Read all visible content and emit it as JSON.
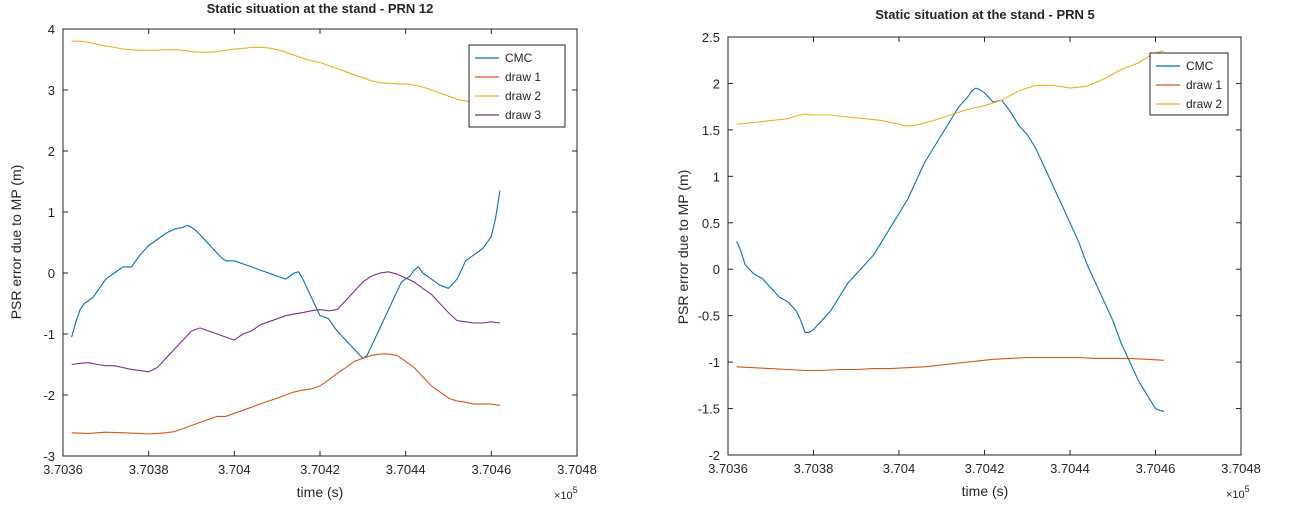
{
  "chart_data": [
    {
      "type": "line",
      "title": "Static situation at the stand - PRN 12",
      "xlabel": "time (s)",
      "ylabel": "PSR error due to MP (m)",
      "x_multiplier": "×10",
      "x_multiplier_exp": "5",
      "xlim": [
        3.7036,
        3.7048
      ],
      "ylim": [
        -3,
        4
      ],
      "xticks": [
        "3.7036",
        "3.7038",
        "3.704",
        "3.7042",
        "3.7044",
        "3.7046",
        "3.7048"
      ],
      "yticks": [
        "-3",
        "-2",
        "-1",
        "0",
        "1",
        "2",
        "3",
        "4"
      ],
      "legend_position": "top-right",
      "grid": false,
      "series": [
        {
          "name": "CMC",
          "color": "#0072BD",
          "x": [
            3.70362,
            3.70363,
            3.70364,
            3.70365,
            3.70366,
            3.70367,
            3.70368,
            3.7037,
            3.70372,
            3.70374,
            3.70376,
            3.70378,
            3.7038,
            3.70382,
            3.70384,
            3.70386,
            3.70388,
            3.70389,
            3.7039,
            3.70391,
            3.70393,
            3.70395,
            3.70397,
            3.70398,
            3.704,
            3.70402,
            3.70404,
            3.70406,
            3.70408,
            3.7041,
            3.70412,
            3.70414,
            3.70415,
            3.70416,
            3.70418,
            3.70419,
            3.7042,
            3.70421,
            3.70422,
            3.70423,
            3.70424,
            3.70426,
            3.70428,
            3.7043,
            3.70431,
            3.70432,
            3.70434,
            3.70436,
            3.70438,
            3.70439,
            3.7044,
            3.70441,
            3.70442,
            3.70443,
            3.70444,
            3.70446,
            3.70448,
            3.7045,
            3.70452,
            3.70453,
            3.70454,
            3.70456,
            3.70458,
            3.7046,
            3.70461,
            3.70462
          ],
          "y": [
            -1.05,
            -0.8,
            -0.6,
            -0.5,
            -0.45,
            -0.4,
            -0.3,
            -0.1,
            0.0,
            0.1,
            0.1,
            0.3,
            0.45,
            0.55,
            0.65,
            0.72,
            0.75,
            0.78,
            0.75,
            0.7,
            0.55,
            0.4,
            0.25,
            0.2,
            0.2,
            0.15,
            0.1,
            0.05,
            0.0,
            -0.05,
            -0.1,
            0.0,
            0.02,
            -0.1,
            -0.4,
            -0.55,
            -0.7,
            -0.72,
            -0.75,
            -0.85,
            -0.95,
            -1.1,
            -1.25,
            -1.4,
            -1.35,
            -1.2,
            -0.9,
            -0.6,
            -0.3,
            -0.15,
            -0.1,
            -0.05,
            0.05,
            0.1,
            0.0,
            -0.1,
            -0.2,
            -0.25,
            -0.1,
            0.05,
            0.2,
            0.3,
            0.4,
            0.6,
            0.9,
            1.35
          ]
        },
        {
          "name": "draw 1",
          "color": "#D95319",
          "x": [
            3.70362,
            3.70366,
            3.7037,
            3.70374,
            3.70378,
            3.7038,
            3.70382,
            3.70384,
            3.70386,
            3.70388,
            3.7039,
            3.70392,
            3.70394,
            3.70396,
            3.70398,
            3.704,
            3.70402,
            3.70404,
            3.70406,
            3.70408,
            3.7041,
            3.70412,
            3.70414,
            3.70416,
            3.70418,
            3.7042,
            3.70422,
            3.70424,
            3.70426,
            3.70428,
            3.7043,
            3.70432,
            3.70434,
            3.70436,
            3.70438,
            3.7044,
            3.70442,
            3.70444,
            3.70446,
            3.70448,
            3.7045,
            3.70452,
            3.70454,
            3.70456,
            3.70458,
            3.7046,
            3.70462
          ],
          "y": [
            -2.62,
            -2.63,
            -2.61,
            -2.62,
            -2.63,
            -2.64,
            -2.63,
            -2.62,
            -2.6,
            -2.55,
            -2.5,
            -2.45,
            -2.4,
            -2.35,
            -2.35,
            -2.3,
            -2.25,
            -2.2,
            -2.15,
            -2.1,
            -2.05,
            -2.0,
            -1.95,
            -1.92,
            -1.9,
            -1.85,
            -1.75,
            -1.65,
            -1.55,
            -1.45,
            -1.4,
            -1.35,
            -1.33,
            -1.33,
            -1.35,
            -1.45,
            -1.55,
            -1.7,
            -1.85,
            -1.95,
            -2.05,
            -2.1,
            -2.12,
            -2.15,
            -2.15,
            -2.15,
            -2.17
          ]
        },
        {
          "name": "draw 2",
          "color": "#EDB120",
          "x": [
            3.70362,
            3.70364,
            3.70366,
            3.70368,
            3.7037,
            3.70372,
            3.70374,
            3.70376,
            3.70378,
            3.7038,
            3.70382,
            3.70384,
            3.70386,
            3.70388,
            3.7039,
            3.70392,
            3.70394,
            3.70396,
            3.70398,
            3.704,
            3.70402,
            3.70404,
            3.70406,
            3.70408,
            3.7041,
            3.70412,
            3.70414,
            3.70416,
            3.70418,
            3.7042,
            3.70422,
            3.70424,
            3.70426,
            3.70428,
            3.7043,
            3.70432,
            3.70434,
            3.70436,
            3.70438,
            3.7044,
            3.70442,
            3.70444,
            3.70446,
            3.70448,
            3.7045,
            3.70452,
            3.70454,
            3.70456,
            3.70458,
            3.7046,
            3.70462
          ],
          "y": [
            3.8,
            3.8,
            3.78,
            3.75,
            3.72,
            3.7,
            3.67,
            3.66,
            3.65,
            3.65,
            3.65,
            3.66,
            3.66,
            3.65,
            3.63,
            3.62,
            3.62,
            3.63,
            3.65,
            3.67,
            3.68,
            3.7,
            3.7,
            3.69,
            3.66,
            3.62,
            3.57,
            3.52,
            3.48,
            3.45,
            3.4,
            3.35,
            3.3,
            3.25,
            3.2,
            3.15,
            3.12,
            3.11,
            3.1,
            3.1,
            3.08,
            3.05,
            3.0,
            2.95,
            2.9,
            2.85,
            2.82,
            2.8,
            2.8,
            2.8,
            2.8
          ]
        },
        {
          "name": "draw 3",
          "color": "#7E2F8E",
          "x": [
            3.70362,
            3.70364,
            3.70366,
            3.70368,
            3.7037,
            3.70372,
            3.70374,
            3.70376,
            3.70378,
            3.7038,
            3.70382,
            3.70384,
            3.70386,
            3.70388,
            3.7039,
            3.70392,
            3.70394,
            3.70396,
            3.70398,
            3.704,
            3.70402,
            3.70404,
            3.70406,
            3.70408,
            3.7041,
            3.70412,
            3.70414,
            3.70416,
            3.70418,
            3.7042,
            3.70422,
            3.70424,
            3.70426,
            3.70428,
            3.7043,
            3.70432,
            3.70434,
            3.70436,
            3.70438,
            3.7044,
            3.70442,
            3.70444,
            3.70446,
            3.70448,
            3.7045,
            3.70452,
            3.70454,
            3.70456,
            3.70458,
            3.7046,
            3.70462
          ],
          "y": [
            -1.5,
            -1.48,
            -1.47,
            -1.5,
            -1.52,
            -1.52,
            -1.55,
            -1.58,
            -1.6,
            -1.62,
            -1.55,
            -1.4,
            -1.25,
            -1.1,
            -0.95,
            -0.9,
            -0.95,
            -1.0,
            -1.05,
            -1.1,
            -1.0,
            -0.95,
            -0.85,
            -0.8,
            -0.75,
            -0.7,
            -0.67,
            -0.65,
            -0.62,
            -0.6,
            -0.62,
            -0.6,
            -0.45,
            -0.3,
            -0.15,
            -0.05,
            0.0,
            0.02,
            -0.02,
            -0.08,
            -0.15,
            -0.25,
            -0.35,
            -0.5,
            -0.65,
            -0.78,
            -0.8,
            -0.82,
            -0.82,
            -0.8,
            -0.82
          ]
        }
      ]
    },
    {
      "type": "line",
      "title": "Static situation at the stand - PRN 5",
      "xlabel": "time (s)",
      "ylabel": "PSR error due to MP (m)",
      "x_multiplier": "×10",
      "x_multiplier_exp": "5",
      "xlim": [
        3.7036,
        3.7048
      ],
      "ylim": [
        -2,
        2.5
      ],
      "xticks": [
        "3.7036",
        "3.7038",
        "3.704",
        "3.7042",
        "3.7044",
        "3.7046",
        "3.7048"
      ],
      "yticks": [
        "-2",
        "-1.5",
        "-1",
        "-0.5",
        "0",
        "0.5",
        "1",
        "1.5",
        "2",
        "2.5"
      ],
      "legend_position": "top-right",
      "grid": false,
      "series": [
        {
          "name": "CMC",
          "color": "#0072BD",
          "x": [
            3.70362,
            3.70363,
            3.70364,
            3.70366,
            3.70368,
            3.7037,
            3.70372,
            3.70374,
            3.70376,
            3.70377,
            3.70378,
            3.70379,
            3.7038,
            3.70382,
            3.70384,
            3.70386,
            3.70388,
            3.7039,
            3.70392,
            3.70394,
            3.70396,
            3.70398,
            3.704,
            3.70402,
            3.70404,
            3.70406,
            3.70408,
            3.7041,
            3.70412,
            3.70414,
            3.70416,
            3.70417,
            3.70418,
            3.70419,
            3.7042,
            3.70421,
            3.70422,
            3.70424,
            3.70426,
            3.70428,
            3.7043,
            3.70432,
            3.70434,
            3.70436,
            3.70438,
            3.7044,
            3.70442,
            3.70444,
            3.70446,
            3.70448,
            3.7045,
            3.70452,
            3.70454,
            3.70456,
            3.70458,
            3.7046,
            3.70461,
            3.70462
          ],
          "y": [
            0.3,
            0.2,
            0.05,
            -0.05,
            -0.1,
            -0.2,
            -0.3,
            -0.35,
            -0.45,
            -0.55,
            -0.68,
            -0.68,
            -0.65,
            -0.55,
            -0.45,
            -0.3,
            -0.15,
            -0.05,
            0.05,
            0.15,
            0.3,
            0.45,
            0.6,
            0.75,
            0.95,
            1.15,
            1.3,
            1.45,
            1.6,
            1.75,
            1.85,
            1.92,
            1.95,
            1.93,
            1.9,
            1.85,
            1.8,
            1.82,
            1.7,
            1.55,
            1.45,
            1.3,
            1.1,
            0.9,
            0.7,
            0.5,
            0.3,
            0.05,
            -0.15,
            -0.35,
            -0.55,
            -0.8,
            -1.0,
            -1.2,
            -1.35,
            -1.5,
            -1.52,
            -1.53
          ]
        },
        {
          "name": "draw 1",
          "color": "#D95319",
          "x": [
            3.70362,
            3.70366,
            3.7037,
            3.70374,
            3.70378,
            3.70382,
            3.70386,
            3.7039,
            3.70394,
            3.70398,
            3.70402,
            3.70406,
            3.7041,
            3.70414,
            3.70418,
            3.70422,
            3.70426,
            3.7043,
            3.70434,
            3.70438,
            3.70442,
            3.70446,
            3.7045,
            3.70454,
            3.70458,
            3.70462
          ],
          "y": [
            -1.05,
            -1.06,
            -1.07,
            -1.08,
            -1.09,
            -1.09,
            -1.08,
            -1.08,
            -1.07,
            -1.07,
            -1.06,
            -1.05,
            -1.03,
            -1.01,
            -0.99,
            -0.97,
            -0.96,
            -0.95,
            -0.95,
            -0.95,
            -0.95,
            -0.96,
            -0.96,
            -0.96,
            -0.97,
            -0.98
          ]
        },
        {
          "name": "draw 2",
          "color": "#EDB120",
          "x": [
            3.70362,
            3.70366,
            3.7037,
            3.70374,
            3.70376,
            3.70378,
            3.7038,
            3.70384,
            3.70388,
            3.70392,
            3.70396,
            3.704,
            3.70402,
            3.70404,
            3.70408,
            3.70412,
            3.70416,
            3.7042,
            3.70424,
            3.70428,
            3.70432,
            3.70436,
            3.7044,
            3.70444,
            3.70448,
            3.70452,
            3.70456,
            3.70458,
            3.7046,
            3.70462
          ],
          "y": [
            1.56,
            1.58,
            1.6,
            1.62,
            1.65,
            1.67,
            1.66,
            1.66,
            1.64,
            1.62,
            1.6,
            1.56,
            1.54,
            1.55,
            1.6,
            1.66,
            1.72,
            1.76,
            1.82,
            1.92,
            1.98,
            1.98,
            1.95,
            1.97,
            2.05,
            2.15,
            2.22,
            2.28,
            2.33,
            2.35
          ]
        }
      ]
    }
  ]
}
